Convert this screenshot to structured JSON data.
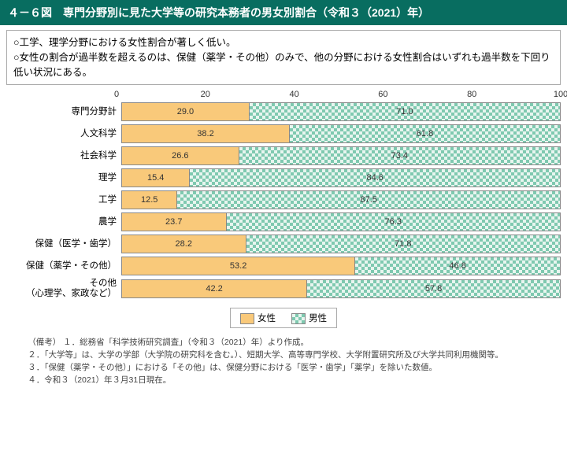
{
  "title": "４－６図　専門分野別に見た大学等の研究本務者の男女別割合（令和３（2021）年）",
  "summary": [
    "○工学、理学分野における女性割合が著しく低い。",
    "○女性の割合が過半数を超えるのは、保健（薬学・その他）のみで、他の分野における女性割合はいずれも過半数を下回り低い状況にある。"
  ],
  "axis": {
    "ticks": [
      0,
      20,
      40,
      60,
      80,
      100
    ],
    "unit": "（%）"
  },
  "legend": {
    "female": "女性",
    "male": "男性"
  },
  "colors": {
    "female": "#f9c97a",
    "male_pattern_fg": "#7fc9b0",
    "male_pattern_bg": "#e8f5ef",
    "title_bg": "#086d60"
  },
  "rows": [
    {
      "label": "専門分野計",
      "f": 29.0,
      "m": 71.0
    },
    {
      "label": "人文科学",
      "f": 38.2,
      "m": 61.8
    },
    {
      "label": "社会科学",
      "f": 26.6,
      "m": 73.4
    },
    {
      "label": "理学",
      "f": 15.4,
      "m": 84.6
    },
    {
      "label": "工学",
      "f": 12.5,
      "m": 87.5
    },
    {
      "label": "農学",
      "f": 23.7,
      "m": 76.3
    },
    {
      "label": "保健（医学・歯学）",
      "f": 28.2,
      "m": 71.8
    },
    {
      "label": "保健（薬学・その他）",
      "f": 53.2,
      "m": 46.8
    },
    {
      "label": "その他\n（心理学、家政など）",
      "f": 42.2,
      "m": 57.8
    }
  ],
  "notes_head": "（備考）",
  "notes": [
    "１．総務省「科学技術研究調査」（令和３（2021）年）より作成。",
    "２．「大学等」は、大学の学部（大学院の研究科を含む。）、短期大学、高等専門学校、大学附置研究所及び大学共同利用機関等。",
    "３．「保健（薬学・その他）」における「その他」は、保健分野における「医学・歯学」「薬学」を除いた数値。",
    "４．令和３（2021）年３月31日現在。"
  ]
}
